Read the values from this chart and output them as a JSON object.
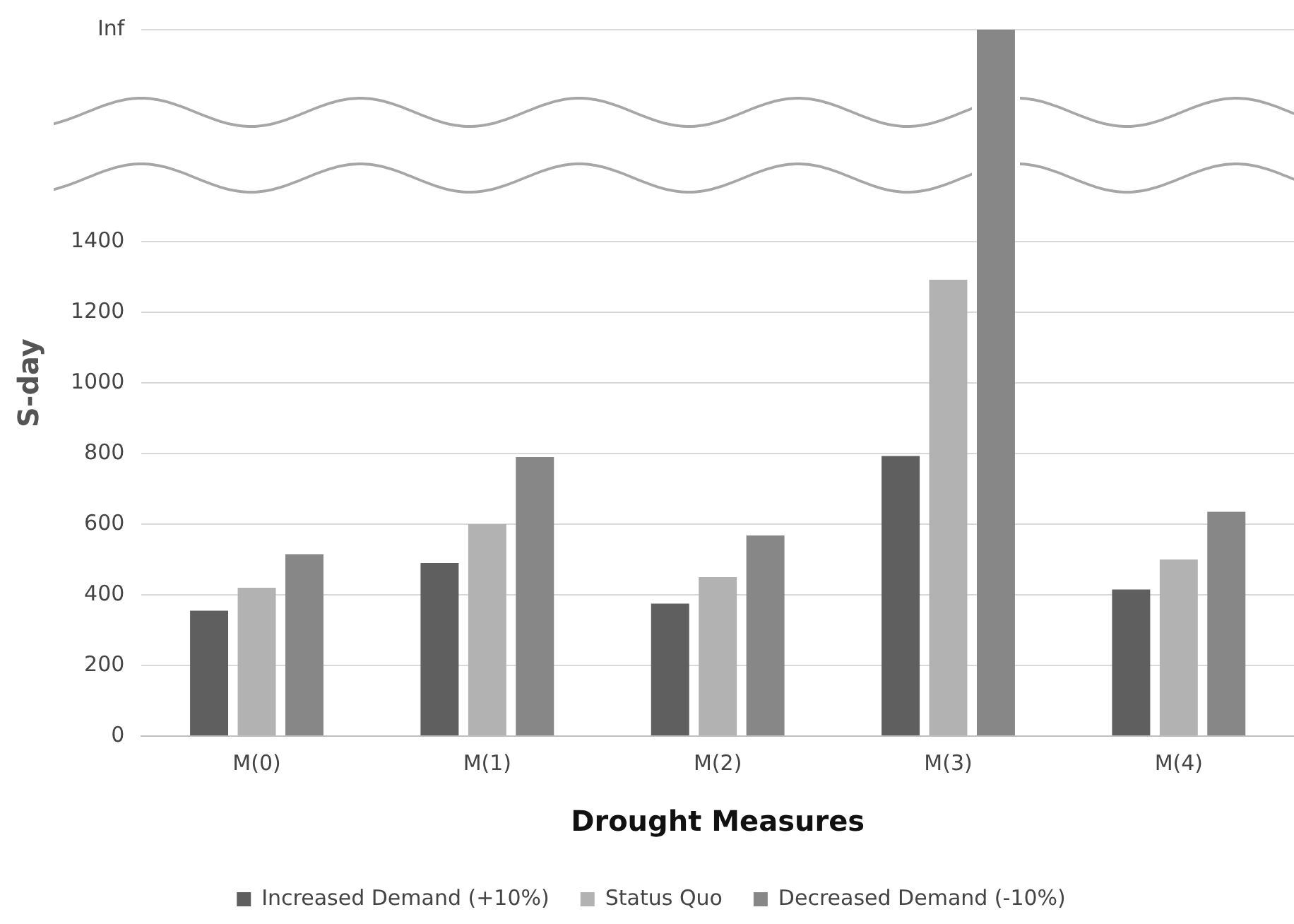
{
  "chart_data": {
    "type": "bar",
    "xlabel": "Drought Measures",
    "ylabel": "S-day",
    "categories": [
      "M(0)",
      "M(1)",
      "M(2)",
      "M(3)",
      "M(4)"
    ],
    "series": [
      {
        "name": "Increased Demand (+10%)",
        "color": "#5f5f5f",
        "values": [
          355,
          490,
          375,
          793,
          415
        ]
      },
      {
        "name": "Status Quo",
        "color": "#b2b2b2",
        "values": [
          420,
          600,
          450,
          1292,
          500
        ]
      },
      {
        "name": "Decreased Demand (-10%)",
        "color": "#878787",
        "values": [
          515,
          790,
          568,
          2000,
          635
        ]
      }
    ],
    "ylim": [
      0,
      2000
    ],
    "yticks": [
      0,
      200,
      400,
      600,
      800,
      1000,
      1200,
      1400,
      {
        "value": 2000,
        "label": "Inf"
      }
    ],
    "grid": "y",
    "legend": "bottom"
  }
}
